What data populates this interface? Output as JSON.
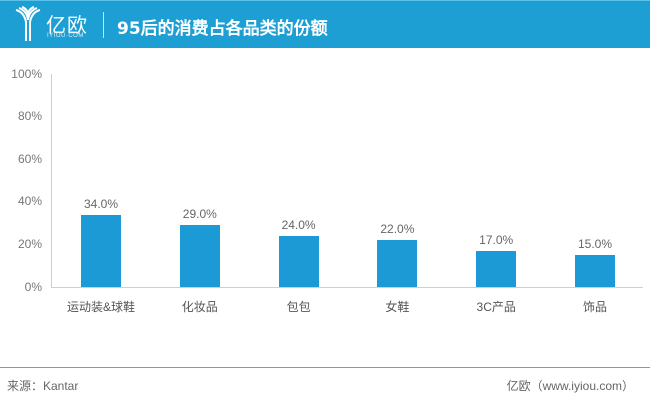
{
  "header": {
    "logo_cn": "亿欧",
    "logo_en": "IYIOU·COM",
    "title": "95后的消费占各品类的份额"
  },
  "colors": {
    "header_bg": "#1e9fd4",
    "bar": "#1b9ad5",
    "footer_line": "#4bb3c8"
  },
  "chart_data": {
    "type": "bar",
    "title": "95后的消费占各品类的份额",
    "categories": [
      "运动装&球鞋",
      "化妆品",
      "包包",
      "女鞋",
      "3C产品",
      "饰品"
    ],
    "values": [
      34.0,
      29.0,
      24.0,
      22.0,
      17.0,
      15.0
    ],
    "value_labels": [
      "34.0%",
      "29.0%",
      "24.0%",
      "22.0%",
      "17.0%",
      "15.0%"
    ],
    "xlabel": "",
    "ylabel": "",
    "ylim": [
      0,
      100
    ],
    "yticks": [
      "0%",
      "20%",
      "40%",
      "60%",
      "80%",
      "100%"
    ],
    "grid": false,
    "legend": "none"
  },
  "footer": {
    "source": "来源：Kantar",
    "credit": "亿欧（www.iyiou.com）"
  }
}
